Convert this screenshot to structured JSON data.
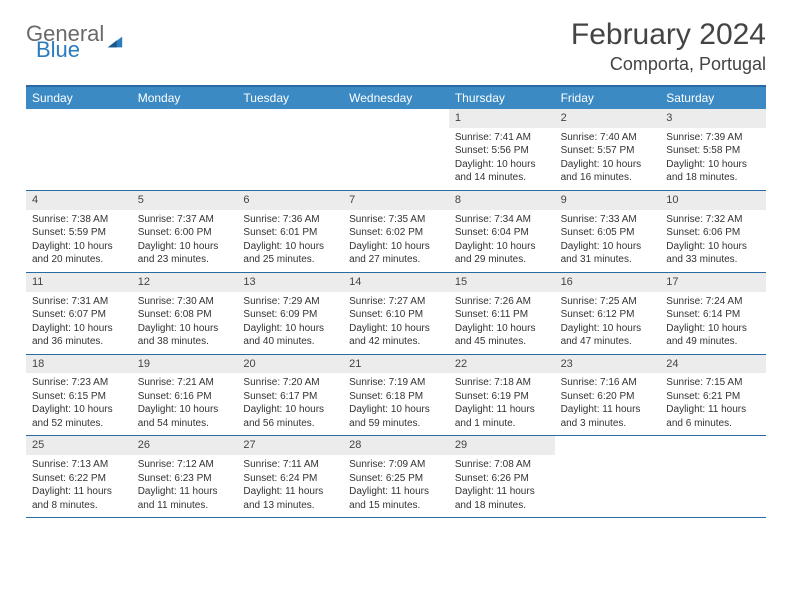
{
  "logo": {
    "general": "General",
    "blue": "Blue"
  },
  "title": "February 2024",
  "location": "Comporta, Portugal",
  "colors": {
    "header_bg": "#3b8ac4",
    "header_text": "#ffffff",
    "border": "#2b6aa3",
    "date_bg": "#ececec",
    "body_text": "#333333",
    "logo_gray": "#6a6a6a",
    "logo_blue": "#2b7bbf"
  },
  "day_names": [
    "Sunday",
    "Monday",
    "Tuesday",
    "Wednesday",
    "Thursday",
    "Friday",
    "Saturday"
  ],
  "weeks": [
    [
      {
        "n": "",
        "sr": "",
        "ss": "",
        "dl": ""
      },
      {
        "n": "",
        "sr": "",
        "ss": "",
        "dl": ""
      },
      {
        "n": "",
        "sr": "",
        "ss": "",
        "dl": ""
      },
      {
        "n": "",
        "sr": "",
        "ss": "",
        "dl": ""
      },
      {
        "n": "1",
        "sr": "Sunrise: 7:41 AM",
        "ss": "Sunset: 5:56 PM",
        "dl": "Daylight: 10 hours and 14 minutes."
      },
      {
        "n": "2",
        "sr": "Sunrise: 7:40 AM",
        "ss": "Sunset: 5:57 PM",
        "dl": "Daylight: 10 hours and 16 minutes."
      },
      {
        "n": "3",
        "sr": "Sunrise: 7:39 AM",
        "ss": "Sunset: 5:58 PM",
        "dl": "Daylight: 10 hours and 18 minutes."
      }
    ],
    [
      {
        "n": "4",
        "sr": "Sunrise: 7:38 AM",
        "ss": "Sunset: 5:59 PM",
        "dl": "Daylight: 10 hours and 20 minutes."
      },
      {
        "n": "5",
        "sr": "Sunrise: 7:37 AM",
        "ss": "Sunset: 6:00 PM",
        "dl": "Daylight: 10 hours and 23 minutes."
      },
      {
        "n": "6",
        "sr": "Sunrise: 7:36 AM",
        "ss": "Sunset: 6:01 PM",
        "dl": "Daylight: 10 hours and 25 minutes."
      },
      {
        "n": "7",
        "sr": "Sunrise: 7:35 AM",
        "ss": "Sunset: 6:02 PM",
        "dl": "Daylight: 10 hours and 27 minutes."
      },
      {
        "n": "8",
        "sr": "Sunrise: 7:34 AM",
        "ss": "Sunset: 6:04 PM",
        "dl": "Daylight: 10 hours and 29 minutes."
      },
      {
        "n": "9",
        "sr": "Sunrise: 7:33 AM",
        "ss": "Sunset: 6:05 PM",
        "dl": "Daylight: 10 hours and 31 minutes."
      },
      {
        "n": "10",
        "sr": "Sunrise: 7:32 AM",
        "ss": "Sunset: 6:06 PM",
        "dl": "Daylight: 10 hours and 33 minutes."
      }
    ],
    [
      {
        "n": "11",
        "sr": "Sunrise: 7:31 AM",
        "ss": "Sunset: 6:07 PM",
        "dl": "Daylight: 10 hours and 36 minutes."
      },
      {
        "n": "12",
        "sr": "Sunrise: 7:30 AM",
        "ss": "Sunset: 6:08 PM",
        "dl": "Daylight: 10 hours and 38 minutes."
      },
      {
        "n": "13",
        "sr": "Sunrise: 7:29 AM",
        "ss": "Sunset: 6:09 PM",
        "dl": "Daylight: 10 hours and 40 minutes."
      },
      {
        "n": "14",
        "sr": "Sunrise: 7:27 AM",
        "ss": "Sunset: 6:10 PM",
        "dl": "Daylight: 10 hours and 42 minutes."
      },
      {
        "n": "15",
        "sr": "Sunrise: 7:26 AM",
        "ss": "Sunset: 6:11 PM",
        "dl": "Daylight: 10 hours and 45 minutes."
      },
      {
        "n": "16",
        "sr": "Sunrise: 7:25 AM",
        "ss": "Sunset: 6:12 PM",
        "dl": "Daylight: 10 hours and 47 minutes."
      },
      {
        "n": "17",
        "sr": "Sunrise: 7:24 AM",
        "ss": "Sunset: 6:14 PM",
        "dl": "Daylight: 10 hours and 49 minutes."
      }
    ],
    [
      {
        "n": "18",
        "sr": "Sunrise: 7:23 AM",
        "ss": "Sunset: 6:15 PM",
        "dl": "Daylight: 10 hours and 52 minutes."
      },
      {
        "n": "19",
        "sr": "Sunrise: 7:21 AM",
        "ss": "Sunset: 6:16 PM",
        "dl": "Daylight: 10 hours and 54 minutes."
      },
      {
        "n": "20",
        "sr": "Sunrise: 7:20 AM",
        "ss": "Sunset: 6:17 PM",
        "dl": "Daylight: 10 hours and 56 minutes."
      },
      {
        "n": "21",
        "sr": "Sunrise: 7:19 AM",
        "ss": "Sunset: 6:18 PM",
        "dl": "Daylight: 10 hours and 59 minutes."
      },
      {
        "n": "22",
        "sr": "Sunrise: 7:18 AM",
        "ss": "Sunset: 6:19 PM",
        "dl": "Daylight: 11 hours and 1 minute."
      },
      {
        "n": "23",
        "sr": "Sunrise: 7:16 AM",
        "ss": "Sunset: 6:20 PM",
        "dl": "Daylight: 11 hours and 3 minutes."
      },
      {
        "n": "24",
        "sr": "Sunrise: 7:15 AM",
        "ss": "Sunset: 6:21 PM",
        "dl": "Daylight: 11 hours and 6 minutes."
      }
    ],
    [
      {
        "n": "25",
        "sr": "Sunrise: 7:13 AM",
        "ss": "Sunset: 6:22 PM",
        "dl": "Daylight: 11 hours and 8 minutes."
      },
      {
        "n": "26",
        "sr": "Sunrise: 7:12 AM",
        "ss": "Sunset: 6:23 PM",
        "dl": "Daylight: 11 hours and 11 minutes."
      },
      {
        "n": "27",
        "sr": "Sunrise: 7:11 AM",
        "ss": "Sunset: 6:24 PM",
        "dl": "Daylight: 11 hours and 13 minutes."
      },
      {
        "n": "28",
        "sr": "Sunrise: 7:09 AM",
        "ss": "Sunset: 6:25 PM",
        "dl": "Daylight: 11 hours and 15 minutes."
      },
      {
        "n": "29",
        "sr": "Sunrise: 7:08 AM",
        "ss": "Sunset: 6:26 PM",
        "dl": "Daylight: 11 hours and 18 minutes."
      },
      {
        "n": "",
        "sr": "",
        "ss": "",
        "dl": ""
      },
      {
        "n": "",
        "sr": "",
        "ss": "",
        "dl": ""
      }
    ]
  ]
}
